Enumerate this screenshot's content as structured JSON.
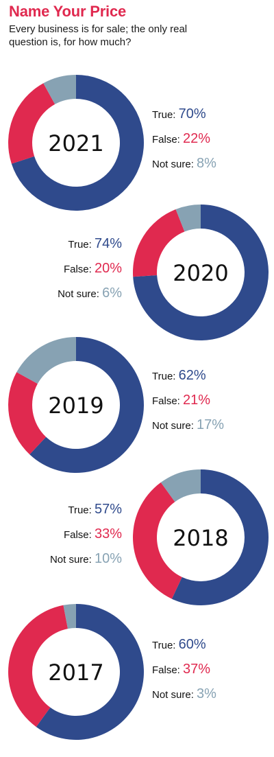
{
  "header": {
    "title": "Name Your Price",
    "subtitle": "Every business is for sale; the only real question is, for how much?"
  },
  "colors": {
    "true": "#2f4a8c",
    "false": "#e0294f",
    "not_sure": "#87a2b3",
    "title": "#e0294f"
  },
  "chart_data": [
    {
      "type": "pie",
      "variant": "donut",
      "center_label": "2021",
      "slices": [
        {
          "label": "True:",
          "value": 70,
          "display": "70%"
        },
        {
          "label": "False:",
          "value": 22,
          "display": "22%"
        },
        {
          "label": "Not sure:",
          "value": 8,
          "display": "8%"
        }
      ]
    },
    {
      "type": "pie",
      "variant": "donut",
      "center_label": "2020",
      "slices": [
        {
          "label": "True:",
          "value": 74,
          "display": "74%"
        },
        {
          "label": "False:",
          "value": 20,
          "display": "20%"
        },
        {
          "label": "Not sure:",
          "value": 6,
          "display": "6%"
        }
      ]
    },
    {
      "type": "pie",
      "variant": "donut",
      "center_label": "2019",
      "slices": [
        {
          "label": "True:",
          "value": 62,
          "display": "62%"
        },
        {
          "label": "False:",
          "value": 21,
          "display": "21%"
        },
        {
          "label": "Not sure:",
          "value": 17,
          "display": "17%"
        }
      ]
    },
    {
      "type": "pie",
      "variant": "donut",
      "center_label": "2018",
      "slices": [
        {
          "label": "True:",
          "value": 57,
          "display": "57%"
        },
        {
          "label": "False:",
          "value": 33,
          "display": "33%"
        },
        {
          "label": "Not sure:",
          "value": 10,
          "display": "10%"
        }
      ]
    },
    {
      "type": "pie",
      "variant": "donut",
      "center_label": "2017",
      "slices": [
        {
          "label": "True:",
          "value": 60,
          "display": "60%"
        },
        {
          "label": "False:",
          "value": 37,
          "display": "37%"
        },
        {
          "label": "Not sure:",
          "value": 3,
          "display": "3%"
        }
      ]
    }
  ]
}
